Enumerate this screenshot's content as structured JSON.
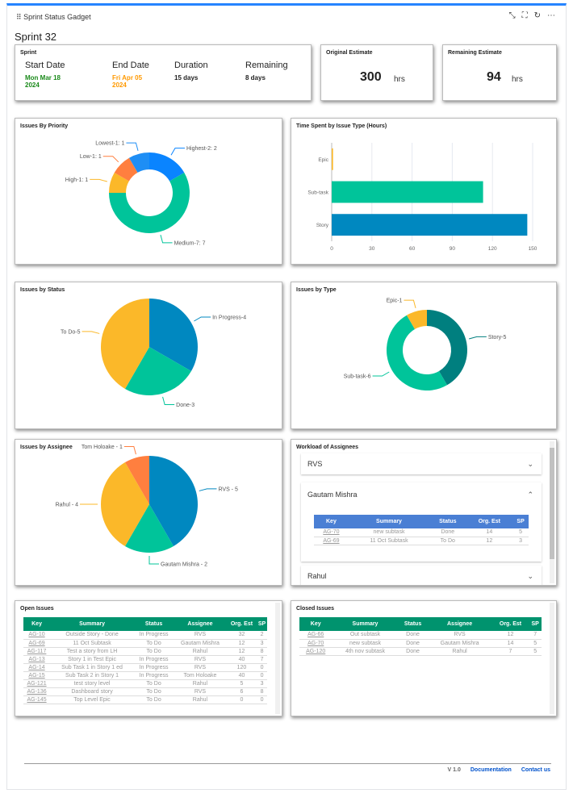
{
  "gadget": {
    "title": "Sprint Status Gadget",
    "sprint_name": "Sprint 32"
  },
  "toolbar": {
    "collapse": "⤡",
    "fullscreen": "⛶",
    "refresh": "↻",
    "more": "⋯"
  },
  "sprint": {
    "title": "Sprint",
    "start_label": "Start Date",
    "start_line1": "Mon Mar 18",
    "start_line2": "2024",
    "end_label": "End Date",
    "end_line1": "Fri Apr 05",
    "end_line2": "2024",
    "duration_label": "Duration",
    "duration": "15 days",
    "remaining_label": "Remaining",
    "remaining": "8 days",
    "start_color": "#1a8a1a",
    "end_color": "#ff9900"
  },
  "original_estimate": {
    "title": "Original Estimate",
    "value": "300",
    "unit": "hrs"
  },
  "remaining_estimate": {
    "title": "Remaining Estimate",
    "value": "94",
    "unit": "hrs"
  },
  "chart_data": [
    {
      "id": "priority",
      "type": "pie",
      "donut": true,
      "title": "Issues By Priority",
      "slices": [
        {
          "label": "Highest-2: 2",
          "value": 2,
          "color": "#0a84ff"
        },
        {
          "label": "Medium-7: 7",
          "value": 7,
          "color": "#00c49a"
        },
        {
          "label": "High-1: 1",
          "value": 1,
          "color": "#fbb829"
        },
        {
          "label": "Low-1: 1",
          "value": 1,
          "color": "#ff7f3f"
        },
        {
          "label": "Lowest-1: 1",
          "value": 1,
          "color": "#1e8ef5"
        }
      ]
    },
    {
      "id": "timespent",
      "type": "bar",
      "orientation": "horizontal",
      "title": "Time Spent by Issue Type (Hours)",
      "categories": [
        "Epic",
        "Sub-task",
        "Story"
      ],
      "values": [
        1,
        113,
        146
      ],
      "colors": [
        "#fbb829",
        "#00c49a",
        "#0088c0"
      ],
      "xlim": [
        0,
        150
      ],
      "xticks": [
        0,
        30,
        60,
        90,
        120,
        150
      ],
      "grid": true
    },
    {
      "id": "status",
      "type": "pie",
      "donut": false,
      "title": "Issues by Status",
      "slices": [
        {
          "label": "In Progress-4",
          "value": 4,
          "color": "#0088c0"
        },
        {
          "label": "Done-3",
          "value": 3,
          "color": "#00c49a"
        },
        {
          "label": "To Do-5",
          "value": 5,
          "color": "#fbb829"
        }
      ]
    },
    {
      "id": "type",
      "type": "pie",
      "donut": true,
      "title": "Issues by Type",
      "slices": [
        {
          "label": "Story-5",
          "value": 5,
          "color": "#007f7f"
        },
        {
          "label": "Sub-task-6",
          "value": 6,
          "color": "#00c49a"
        },
        {
          "label": "Epic-1",
          "value": 1,
          "color": "#fbb829"
        }
      ]
    },
    {
      "id": "assignee",
      "type": "pie",
      "donut": false,
      "title": "Issues by Assignee",
      "slices": [
        {
          "label": "RVS - 5",
          "value": 5,
          "color": "#0088c0"
        },
        {
          "label": "Gautam Mishra - 2",
          "value": 2,
          "color": "#00c49a"
        },
        {
          "label": "Rahul - 4",
          "value": 4,
          "color": "#fbb829"
        },
        {
          "label": "Tom Holoake - 1",
          "value": 1,
          "color": "#ff7f3f"
        }
      ]
    }
  ],
  "workload": {
    "title": "Workload of Assignees",
    "assignees": [
      "RVS",
      "Gautam Mishra",
      "Rahul"
    ],
    "columns": [
      "Key",
      "Summary",
      "Status",
      "Org. Est",
      "SP"
    ],
    "rows": [
      [
        "AG-70",
        "new subtask",
        "Done",
        "14",
        "5"
      ],
      [
        "AG-69",
        "11 Oct Subtask",
        "To Do",
        "12",
        "3"
      ]
    ],
    "header_color": "#4a7fd4"
  },
  "open_issues": {
    "title": "Open Issues",
    "columns": [
      "Key",
      "Summary",
      "Status",
      "Assignee",
      "Org. Est",
      "SP"
    ],
    "rows": [
      [
        "AG-10",
        "Outside Story - Done",
        "In Progress",
        "RVS",
        "32",
        "2"
      ],
      [
        "AG-69",
        "11 Oct Subtask",
        "To Do",
        "Gautam Mishra",
        "12",
        "3"
      ],
      [
        "AG-117",
        "Test a story from LH",
        "To Do",
        "Rahul",
        "12",
        "8"
      ],
      [
        "AG-13",
        "Story 1 in Test Epic",
        "In Progress",
        "RVS",
        "40",
        "7"
      ],
      [
        "AG-14",
        "Sub Task 1 in Story 1 ed",
        "In Progress",
        "RVS",
        "120",
        "0"
      ],
      [
        "AG-15",
        "Sub Task 2 in Story 1",
        "In Progress",
        "Tom Holoake",
        "40",
        "0"
      ],
      [
        "AG-121",
        "test story level",
        "To Do",
        "Rahul",
        "5",
        "3"
      ],
      [
        "AG-136",
        "Dashboard story",
        "To Do",
        "RVS",
        "6",
        "8"
      ],
      [
        "AG-145",
        "Top Level Epic",
        "To Do",
        "Rahul",
        "0",
        "0"
      ]
    ],
    "header_color": "#00936e"
  },
  "closed_issues": {
    "title": "Closed Issues",
    "columns": [
      "Key",
      "Summary",
      "Status",
      "Assignee",
      "Org. Est",
      "SP"
    ],
    "rows": [
      [
        "AG-66",
        "Out subtask",
        "Done",
        "RVS",
        "12",
        "7"
      ],
      [
        "AG-70",
        "new subtask",
        "Done",
        "Gautam Mishra",
        "14",
        "5"
      ],
      [
        "AG-120",
        "4th nov subtask",
        "Done",
        "Rahul",
        "7",
        "5"
      ]
    ],
    "header_color": "#00936e"
  },
  "footer": {
    "version": "V 1.0",
    "documentation": "Documentation",
    "contact": "Contact us",
    "link_color": "#0052cc"
  }
}
